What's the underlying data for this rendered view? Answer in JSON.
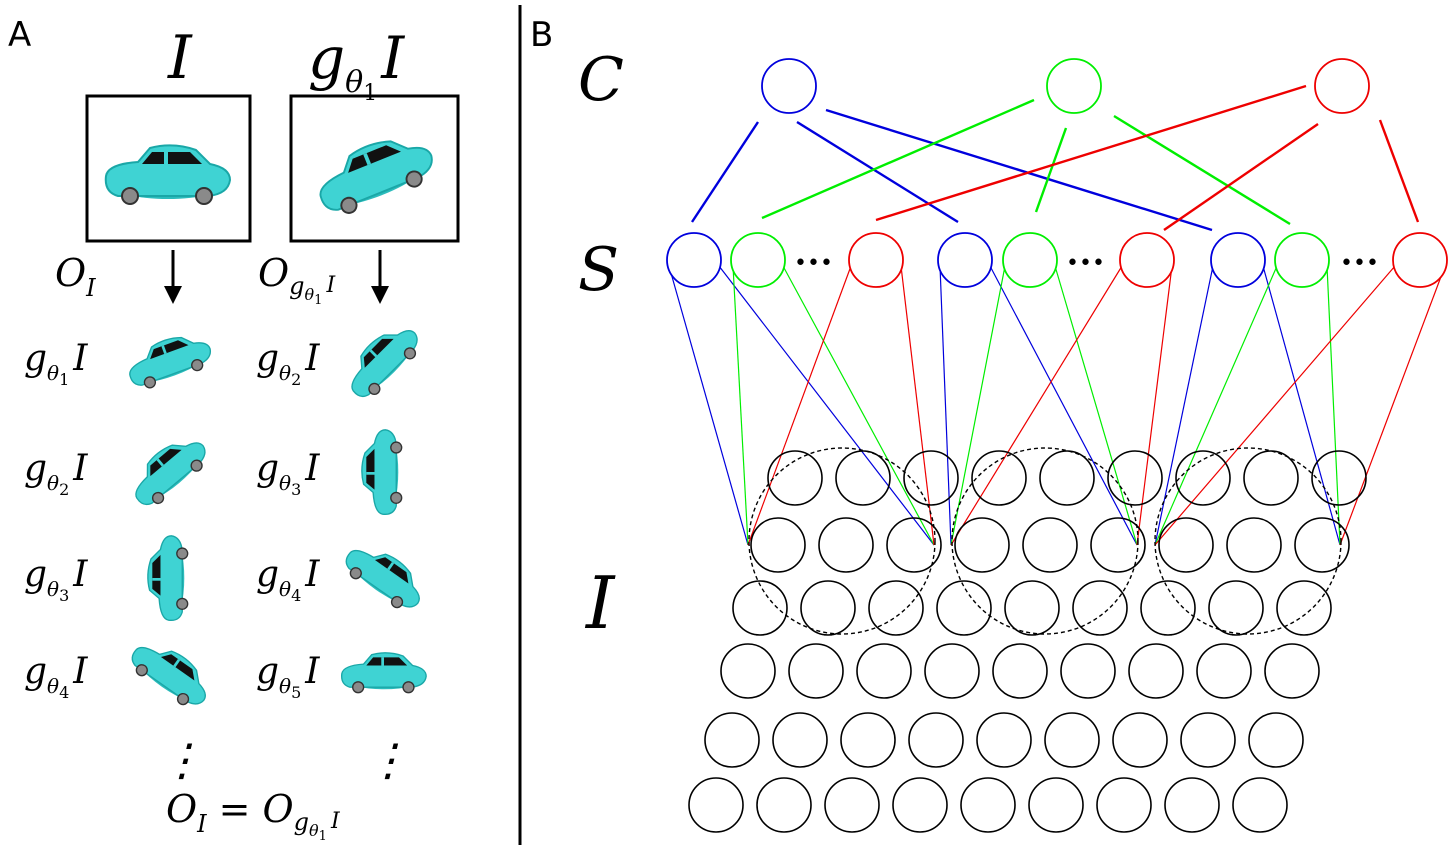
{
  "panel_a": {
    "label": "A",
    "header": {
      "left": "I",
      "right_g": "g",
      "right_sub": "θ",
      "right_subsub": "1",
      "right_I": "I"
    },
    "orbit_labels": {
      "left": {
        "O": "O",
        "sub": "I"
      },
      "right": {
        "O": "O",
        "sub_g": "g",
        "sub_theta": "θ",
        "sub_one": "1",
        "sub_I": "I"
      }
    },
    "rows": [
      {
        "left": "1",
        "right": "2"
      },
      {
        "left": "2",
        "right": "3"
      },
      {
        "left": "3",
        "right": "4"
      },
      {
        "left": "4",
        "right": "5"
      }
    ],
    "ellipsis": "⋮",
    "equation": {
      "O": "O",
      "sub_I": "I",
      "equals": "=",
      "O2": "O",
      "sub_g": "g",
      "sub_theta": "θ",
      "sub_one": "1",
      "sub_I2": "I"
    },
    "car_colors": {
      "body": "#3fd3d3",
      "body_dark": "#1aa7a7",
      "window": "#111111",
      "wheel": "#8a8a8a"
    }
  },
  "panel_b": {
    "label": "B",
    "layer_labels": {
      "complex": "C",
      "simple": "S",
      "input": "I"
    },
    "dots": "•••",
    "colors": {
      "blue": "#0000dd",
      "green": "#00ee00",
      "red": "#ee0000",
      "black": "#000000"
    }
  }
}
